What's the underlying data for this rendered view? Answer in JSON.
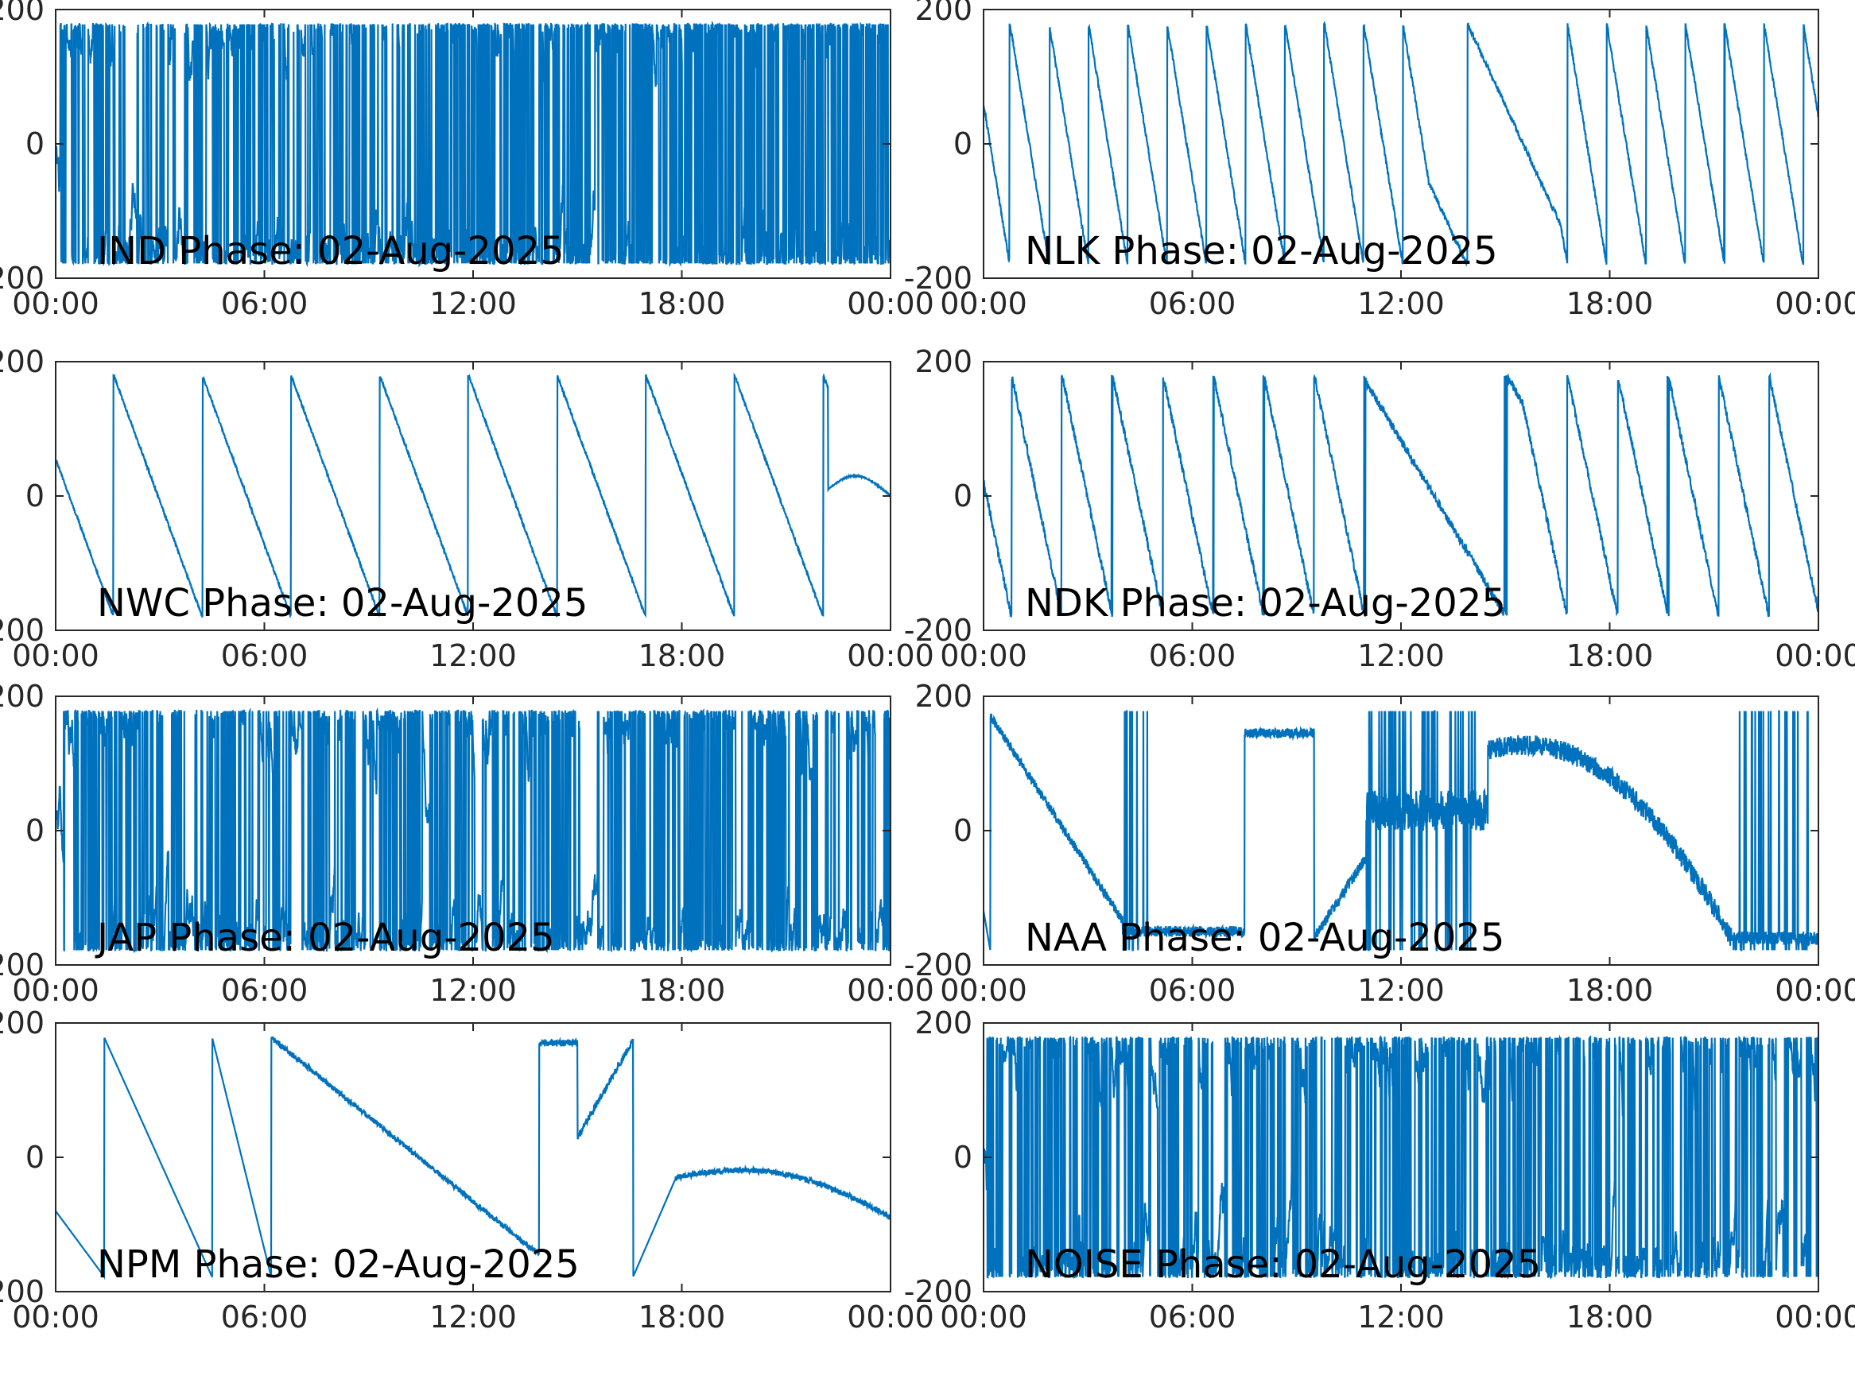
{
  "figure": {
    "background": "#ffffff",
    "axis_color": "#262626",
    "line_color": "#0072bd",
    "layout": "4 rows x 2 columns"
  },
  "chart_data": [
    {
      "type": "line",
      "station": "IND",
      "title": "IND Phase: 02-Aug-2025",
      "xlabel": "",
      "ylabel": "",
      "xlim": [
        "00:00",
        "24:00"
      ],
      "ylim": [
        -200,
        200
      ],
      "xticks": [
        "00:00",
        "06:00",
        "12:00",
        "18:00",
        "00:00"
      ],
      "yticks": [
        "-200",
        "0",
        "200"
      ],
      "grid": false,
      "series": [
        {
          "color": "#0072bd",
          "pattern": "wrapped_noise",
          "params": {
            "start": 0.0,
            "end": 24.0,
            "density_early": 260,
            "density_late": 900,
            "seed": 11
          }
        }
      ]
    },
    {
      "type": "line",
      "station": "NLK",
      "title": "NLK Phase: 02-Aug-2025",
      "xlabel": "",
      "ylabel": "",
      "xlim": [
        "00:00",
        "24:00"
      ],
      "ylim": [
        -200,
        200
      ],
      "xticks": [
        "00:00",
        "06:00",
        "12:00",
        "18:00",
        "00:00"
      ],
      "yticks": [
        "-200",
        "0",
        "200"
      ],
      "grid": false,
      "series": [
        {
          "color": "#0072bd",
          "pattern": "sawtooth",
          "params": {
            "period_h": 1.13,
            "phase_start": 60,
            "noise": 4,
            "seed": 21,
            "disturb_from": 12.8,
            "disturb_to": 16.6
          }
        }
      ]
    },
    {
      "type": "line",
      "station": "NWC",
      "title": "NWC Phase: 02-Aug-2025",
      "xlabel": "",
      "ylabel": "",
      "xlim": [
        "00:00",
        "24:00"
      ],
      "ylim": [
        -200,
        200
      ],
      "xticks": [
        "00:00",
        "06:00",
        "12:00",
        "18:00",
        "00:00"
      ],
      "yticks": [
        "-200",
        "0",
        "200"
      ],
      "grid": false,
      "series": [
        {
          "color": "#0072bd",
          "pattern": "sawtooth",
          "params": {
            "period_h": 2.55,
            "phase_start": 55,
            "noise": 2,
            "seed": 31,
            "end_bump": true
          }
        }
      ]
    },
    {
      "type": "line",
      "station": "NDK",
      "title": "NDK Phase: 02-Aug-2025",
      "xlabel": "",
      "ylabel": "",
      "xlim": [
        "00:00",
        "24:00"
      ],
      "ylim": [
        -200,
        200
      ],
      "xticks": [
        "00:00",
        "06:00",
        "12:00",
        "18:00",
        "00:00"
      ],
      "yticks": [
        "-200",
        "0",
        "200"
      ],
      "grid": false,
      "series": [
        {
          "color": "#0072bd",
          "pattern": "sawtooth",
          "params": {
            "period_h": 1.45,
            "phase_start": 20,
            "noise": 6,
            "seed": 41,
            "disturb_from": 11.0,
            "disturb_to": 15.5
          }
        }
      ]
    },
    {
      "type": "line",
      "station": "JAP",
      "title": "JAP Phase: 02-Aug-2025",
      "xlabel": "",
      "ylabel": "",
      "xlim": [
        "00:00",
        "24:00"
      ],
      "ylim": [
        -200,
        200
      ],
      "xticks": [
        "00:00",
        "06:00",
        "12:00",
        "18:00",
        "00:00"
      ],
      "yticks": [
        "-200",
        "0",
        "200"
      ],
      "grid": false,
      "series": [
        {
          "color": "#0072bd",
          "pattern": "wrapped_noise",
          "params": {
            "start": 0.0,
            "end": 24.0,
            "density_early": 420,
            "density_late": 420,
            "seed": 51
          }
        }
      ]
    },
    {
      "type": "line",
      "station": "NAA",
      "title": "NAA Phase: 02-Aug-2025",
      "xlabel": "",
      "ylabel": "",
      "xlim": [
        "00:00",
        "24:00"
      ],
      "ylim": [
        -200,
        200
      ],
      "xticks": [
        "00:00",
        "06:00",
        "12:00",
        "18:00",
        "00:00"
      ],
      "yticks": [
        "-200",
        "0",
        "200"
      ],
      "grid": false,
      "series": [
        {
          "color": "#0072bd",
          "pattern": "naa",
          "params": {
            "seed": 61
          }
        }
      ]
    },
    {
      "type": "line",
      "station": "NPM",
      "title": "NPM Phase: 02-Aug-2025",
      "xlabel": "",
      "ylabel": "",
      "xlim": [
        "00:00",
        "24:00"
      ],
      "ylim": [
        -200,
        200
      ],
      "xticks": [
        "00:00",
        "06:00",
        "12:00",
        "18:00",
        "00:00"
      ],
      "yticks": [
        "-200",
        "0",
        "200"
      ],
      "grid": false,
      "series": [
        {
          "color": "#0072bd",
          "pattern": "npm",
          "params": {
            "seed": 71
          }
        }
      ]
    },
    {
      "type": "line",
      "station": "NOISE",
      "title": "NOISE Phase: 02-Aug-2025",
      "xlabel": "",
      "ylabel": "",
      "xlim": [
        "00:00",
        "24:00"
      ],
      "ylim": [
        -200,
        200
      ],
      "xticks": [
        "00:00",
        "06:00",
        "12:00",
        "18:00",
        "00:00"
      ],
      "yticks": [
        "-200",
        "0",
        "200"
      ],
      "grid": false,
      "series": [
        {
          "color": "#0072bd",
          "pattern": "wrapped_noise",
          "params": {
            "start": 0.0,
            "end": 24.0,
            "density_early": 360,
            "density_late": 360,
            "seed": 81
          }
        }
      ]
    }
  ]
}
